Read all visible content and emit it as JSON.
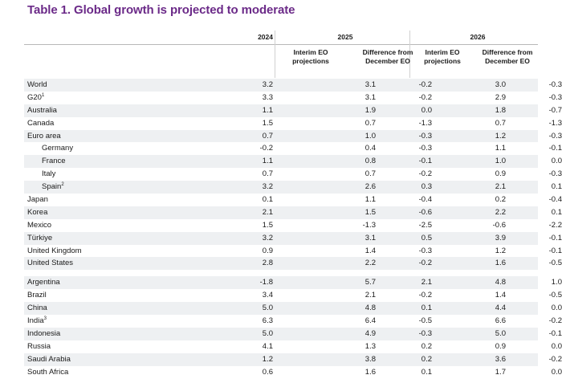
{
  "title": "Table 1. Global growth is projected to moderate",
  "header": {
    "year_2024": "2024",
    "year_2025": "2025",
    "year_2026": "2026",
    "interim_label_1": "Interim EO",
    "interim_label_2": "projections",
    "diff_label_1": "Difference from",
    "diff_label_2": "December EO"
  },
  "group1": [
    {
      "name": "World",
      "v2024": "3.2",
      "p2025": "3.1",
      "d2025": "-0.2",
      "p2026": "3.0",
      "d2026": "-0.3"
    },
    {
      "name": "G20",
      "sup": "1",
      "v2024": "3.3",
      "p2025": "3.1",
      "d2025": "-0.2",
      "p2026": "2.9",
      "d2026": "-0.3"
    },
    {
      "name": "Australia",
      "v2024": "1.1",
      "p2025": "1.9",
      "d2025": "0.0",
      "p2026": "1.8",
      "d2026": "-0.7"
    },
    {
      "name": "Canada",
      "v2024": "1.5",
      "p2025": "0.7",
      "d2025": "-1.3",
      "p2026": "0.7",
      "d2026": "-1.3"
    },
    {
      "name": "Euro area",
      "v2024": "0.7",
      "p2025": "1.0",
      "d2025": "-0.3",
      "p2026": "1.2",
      "d2026": "-0.3"
    },
    {
      "name": "Germany",
      "indent": true,
      "v2024": "-0.2",
      "p2025": "0.4",
      "d2025": "-0.3",
      "p2026": "1.1",
      "d2026": "-0.1"
    },
    {
      "name": "France",
      "indent": true,
      "v2024": "1.1",
      "p2025": "0.8",
      "d2025": "-0.1",
      "p2026": "1.0",
      "d2026": "0.0"
    },
    {
      "name": "Italy",
      "indent": true,
      "v2024": "0.7",
      "p2025": "0.7",
      "d2025": "-0.2",
      "p2026": "0.9",
      "d2026": "-0.3"
    },
    {
      "name": "Spain",
      "sup": "2",
      "indent": true,
      "v2024": "3.2",
      "p2025": "2.6",
      "d2025": "0.3",
      "p2026": "2.1",
      "d2026": "0.1"
    },
    {
      "name": "Japan",
      "v2024": "0.1",
      "p2025": "1.1",
      "d2025": "-0.4",
      "p2026": "0.2",
      "d2026": "-0.4"
    },
    {
      "name": "Korea",
      "v2024": "2.1",
      "p2025": "1.5",
      "d2025": "-0.6",
      "p2026": "2.2",
      "d2026": "0.1"
    },
    {
      "name": "Mexico",
      "v2024": "1.5",
      "p2025": "-1.3",
      "d2025": "-2.5",
      "p2026": "-0.6",
      "d2026": "-2.2"
    },
    {
      "name": "Türkiye",
      "v2024": "3.2",
      "p2025": "3.1",
      "d2025": "0.5",
      "p2026": "3.9",
      "d2026": "-0.1"
    },
    {
      "name": "United Kingdom",
      "v2024": "0.9",
      "p2025": "1.4",
      "d2025": "-0.3",
      "p2026": "1.2",
      "d2026": "-0.1"
    },
    {
      "name": "United States",
      "v2024": "2.8",
      "p2025": "2.2",
      "d2025": "-0.2",
      "p2026": "1.6",
      "d2026": "-0.5"
    }
  ],
  "group2": [
    {
      "name": "Argentina",
      "v2024": "-1.8",
      "p2025": "5.7",
      "d2025": "2.1",
      "p2026": "4.8",
      "d2026": "1.0"
    },
    {
      "name": "Brazil",
      "v2024": "3.4",
      "p2025": "2.1",
      "d2025": "-0.2",
      "p2026": "1.4",
      "d2026": "-0.5"
    },
    {
      "name": "China",
      "v2024": "5.0",
      "p2025": "4.8",
      "d2025": "0.1",
      "p2026": "4.4",
      "d2026": "0.0"
    },
    {
      "name": "India",
      "sup": "3",
      "v2024": "6.3",
      "p2025": "6.4",
      "d2025": "-0.5",
      "p2026": "6.6",
      "d2026": "-0.2"
    },
    {
      "name": "Indonesia",
      "v2024": "5.0",
      "p2025": "4.9",
      "d2025": "-0.3",
      "p2026": "5.0",
      "d2026": "-0.1"
    },
    {
      "name": "Russia",
      "v2024": "4.1",
      "p2025": "1.3",
      "d2025": "0.2",
      "p2026": "0.9",
      "d2026": "0.0"
    },
    {
      "name": "Saudi Arabia",
      "v2024": "1.2",
      "p2025": "3.8",
      "d2025": "0.2",
      "p2026": "3.6",
      "d2026": "-0.2"
    },
    {
      "name": "South Africa",
      "v2024": "0.6",
      "p2025": "1.6",
      "d2025": "0.1",
      "p2026": "1.7",
      "d2026": "0.0"
    }
  ],
  "colors": {
    "title": "#6b2a88",
    "row_shade": "#eef0f2",
    "rule": "#b8b8b8"
  }
}
